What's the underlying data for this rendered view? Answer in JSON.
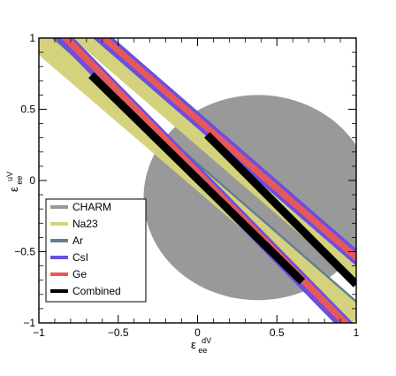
{
  "chart_data": {
    "type": "area",
    "title": "",
    "xlabel": {
      "main": "ε",
      "sup": "dV",
      "sub": "ee"
    },
    "ylabel": {
      "main": "ε",
      "sup": "uV",
      "sub": "ee"
    },
    "xlim": [
      -1,
      1
    ],
    "ylim": [
      -1,
      1
    ],
    "x_ticks": [
      -1,
      -0.5,
      0,
      0.5,
      1
    ],
    "y_ticks": [
      -1,
      -0.5,
      0,
      0.5,
      1
    ],
    "x_tick_labels": [
      "−1",
      "−0.5",
      "0",
      "0.5",
      "1"
    ],
    "y_tick_labels": [
      "−1",
      "−0.5",
      "0",
      "0.5",
      "1"
    ],
    "grid": false,
    "legend_position": "bottom-left",
    "series": [
      {
        "name": "CHARM",
        "color": "#999999",
        "kind": "disk",
        "center": [
          0.38,
          -0.12
        ],
        "radius": 0.72
      },
      {
        "name": "Na23",
        "color": "#d4d27c",
        "kind": "bands",
        "bands": [
          {
            "polygon": [
              [
                -1.0,
                1.0
              ],
              [
                -0.91,
                1.0
              ],
              [
                1.0,
                -0.85
              ],
              [
                1.0,
                -0.98
              ],
              [
                0.97,
                -1.0
              ],
              [
                -1.0,
                0.88
              ]
            ]
          },
          {
            "polygon": [
              [
                -0.79,
                1.0
              ],
              [
                -0.64,
                1.0
              ],
              [
                1.0,
                -0.58
              ],
              [
                1.0,
                -0.72
              ]
            ]
          }
        ]
      },
      {
        "name": "Ar",
        "color": "#5f7f93",
        "kind": "bands",
        "bands": [
          {
            "polygon": [
              [
                -0.92,
                1.0
              ],
              [
                -0.9,
                1.0
              ],
              [
                1.0,
                -0.84
              ],
              [
                1.0,
                -0.86
              ]
            ]
          }
        ]
      },
      {
        "name": "CsI",
        "color": "#6a4fe0",
        "kind": "bands",
        "bands": [
          {
            "polygon": [
              [
                -0.9,
                1.0
              ],
              [
                -0.78,
                1.0
              ],
              [
                0.98,
                -1.0
              ],
              [
                0.86,
                -1.0
              ]
            ]
          },
          {
            "polygon": [
              [
                -0.66,
                1.0
              ],
              [
                -0.53,
                1.0
              ],
              [
                1.0,
                -0.48
              ],
              [
                1.0,
                -0.6
              ]
            ]
          }
        ]
      },
      {
        "name": "Ge",
        "color": "#e8585a",
        "kind": "bands",
        "bands": [
          {
            "polygon": [
              [
                -0.86,
                1.0
              ],
              [
                -0.8,
                1.0
              ],
              [
                0.96,
                -1.0
              ],
              [
                0.9,
                -1.0
              ]
            ]
          },
          {
            "polygon": [
              [
                -0.62,
                1.0
              ],
              [
                -0.56,
                1.0
              ],
              [
                1.0,
                -0.51
              ],
              [
                1.0,
                -0.57
              ]
            ]
          }
        ]
      },
      {
        "name": "Combined",
        "color": "#000000",
        "kind": "segments",
        "segments": [
          {
            "from": [
              -0.67,
              0.74
            ],
            "to": [
              0.66,
              -0.71
            ],
            "width_units": 0.05
          },
          {
            "from": [
              0.06,
              0.32
            ],
            "to": [
              1.0,
              -0.73
            ],
            "width_units": 0.05
          }
        ]
      }
    ]
  }
}
